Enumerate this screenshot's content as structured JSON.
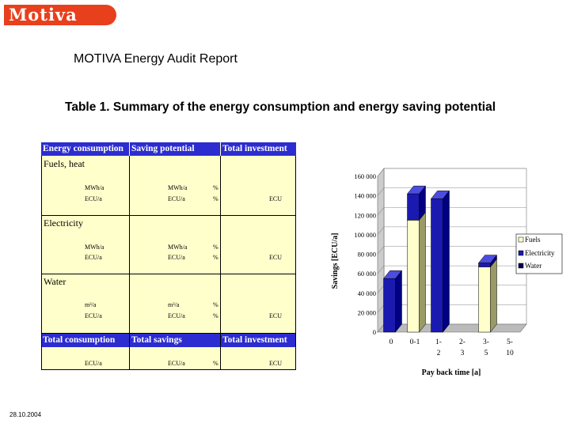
{
  "header": {
    "logo_text": "Motiva",
    "report_title": "MOTIVA Energy Audit Report"
  },
  "table": {
    "title": "Table 1. Summary of the energy consumption and energy saving potential",
    "header": [
      "Energy consumption",
      "Saving potential",
      "Total investment"
    ],
    "sections": [
      {
        "label": "Fuels, heat",
        "rows": [
          [
            "MWh/a",
            "MWh/a",
            "%",
            ""
          ],
          [
            "ECU/a",
            "ECU/a",
            "%",
            "ECU"
          ]
        ]
      },
      {
        "label": "Electricity",
        "rows": [
          [
            "MWh/a",
            "MWh/a",
            "%",
            ""
          ],
          [
            "ECU/a",
            "ECU/a",
            "%",
            "ECU"
          ]
        ]
      },
      {
        "label": "Water",
        "rows": [
          [
            "m³/a",
            "m³/a",
            "%",
            ""
          ],
          [
            "ECU/a",
            "ECU/a",
            "%",
            "ECU"
          ]
        ]
      }
    ],
    "footer_header": [
      "Total consumption",
      "Total savings",
      "Total investment"
    ],
    "footer_row": [
      "ECU/a",
      "ECU/a",
      "%",
      "ECU"
    ]
  },
  "chart_data": {
    "type": "bar",
    "variant": "3d-grouped",
    "title": "",
    "xlabel": "Pay back time [a]",
    "ylabel": "Savings [ECU/a]",
    "ylim": [
      0,
      160000
    ],
    "yticks": [
      "0",
      "20 000",
      "40 000",
      "60 000",
      "80 000",
      "100 000",
      "120 000",
      "140 000",
      "160 000"
    ],
    "categories": [
      [
        "0"
      ],
      [
        "0-1"
      ],
      [
        "1-",
        "2"
      ],
      [
        "2-",
        "3"
      ],
      [
        "3-",
        "5"
      ],
      [
        "5-",
        "10"
      ]
    ],
    "series": [
      {
        "name": "Fuels",
        "color": "#ffffcc",
        "values": [
          0,
          115000,
          0,
          0,
          67000,
          0
        ]
      },
      {
        "name": "Electricity",
        "color": "#1a1ab0",
        "values": [
          55000,
          27000,
          137000,
          0,
          4000,
          0
        ]
      },
      {
        "name": "Water",
        "color": "#000055",
        "values": [
          0,
          0,
          0,
          0,
          0,
          0
        ]
      }
    ],
    "legend_position": "right"
  },
  "footer": {
    "date": "28.10.2004"
  }
}
